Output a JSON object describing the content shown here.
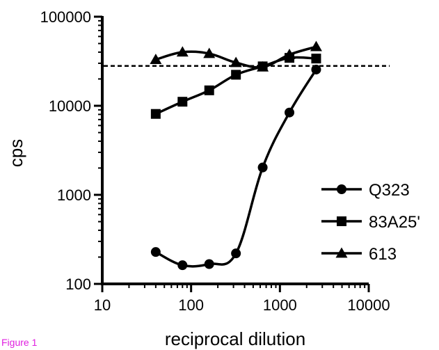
{
  "chart_data": {
    "type": "line",
    "xlabel": "reciprocal dilution",
    "ylabel": "cps",
    "x_scale": "log",
    "y_scale": "log",
    "xlim": [
      10,
      10000
    ],
    "ylim": [
      100,
      100000
    ],
    "x_ticks": [
      "10",
      "100",
      "1000",
      "10000"
    ],
    "y_ticks": [
      "100",
      "1000",
      "10000",
      "100000"
    ],
    "legend_position": "right",
    "series": [
      {
        "name": "Q323",
        "marker": "circle",
        "x": [
          40,
          80,
          160,
          320,
          640,
          1280,
          2560
        ],
        "y": [
          228,
          162,
          167,
          220,
          2030,
          8400,
          25500
        ]
      },
      {
        "name": "83A25'",
        "marker": "square",
        "x": [
          40,
          80,
          160,
          320,
          640,
          1280,
          2560
        ],
        "y": [
          8100,
          11100,
          14900,
          22300,
          27700,
          34500,
          33900
        ]
      },
      {
        "name": "613",
        "marker": "triangle",
        "x": [
          40,
          80,
          160,
          320,
          640,
          1280,
          2560
        ],
        "y": [
          33000,
          40000,
          38500,
          30500,
          27200,
          37500,
          46000
        ]
      }
    ],
    "reference_line": {
      "y": 28000,
      "style": "dashed"
    }
  },
  "caption": "Figure 1"
}
